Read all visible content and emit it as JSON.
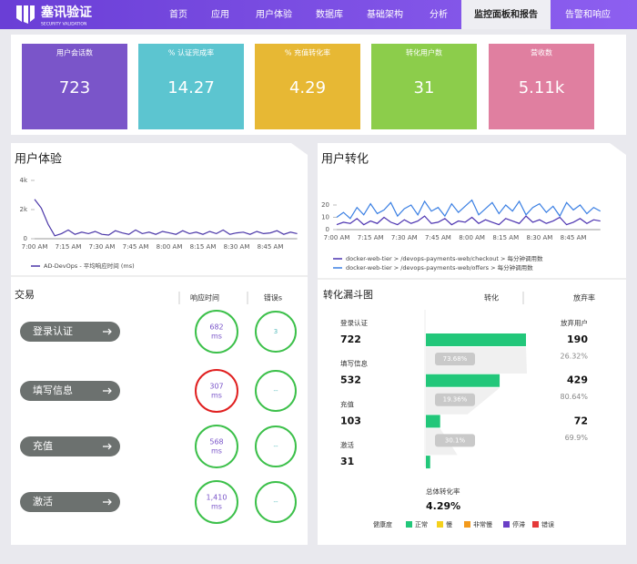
{
  "header": {
    "logo_text": "塞讯验证",
    "logo_sub": "SECURITY VALIDATION",
    "nav": [
      "首页",
      "应用",
      "用户体验",
      "数据库",
      "基础架构",
      "分析",
      "监控面板和报告",
      "告警和响应"
    ],
    "active": 6
  },
  "kpis": [
    {
      "label": "用户会话数",
      "value": "723",
      "color": "#7a55c9"
    },
    {
      "label": "% 认证完成率",
      "value": "14.27",
      "color": "#5cc5d0"
    },
    {
      "label": "% 充值转化率",
      "value": "4.29",
      "color": "#e7b834"
    },
    {
      "label": "转化用户数",
      "value": "31",
      "color": "#8ccd4b"
    },
    {
      "label": "营收数",
      "value": "5.11k",
      "color": "#e07fa0"
    }
  ],
  "ux": {
    "title": "用户体验",
    "chart": {
      "type": "line",
      "categories": [
        "7:00 AM",
        null,
        null,
        null,
        null,
        "7:15 AM",
        null,
        null,
        null,
        null,
        "7:30 AM",
        null,
        null,
        null,
        null,
        "7:45 AM",
        null,
        null,
        null,
        null,
        "8:00 AM",
        null,
        null,
        null,
        null,
        "8:15 AM",
        null,
        null,
        null,
        null,
        "8:30 AM",
        null,
        null,
        null,
        null,
        "8:45 AM",
        null,
        null,
        null,
        null
      ],
      "series": [
        {
          "name": "AD-DevOps - 平均响应时间 (ms)",
          "color": "#4a36a8",
          "values": [
            2700,
            2100,
            1000,
            200,
            350,
            600,
            300,
            450,
            350,
            500,
            300,
            250,
            550,
            400,
            300,
            600,
            350,
            450,
            300,
            500,
            400,
            300,
            550,
            350,
            450,
            300,
            500,
            350,
            600,
            300,
            400,
            450,
            300,
            500,
            350,
            400,
            550,
            300,
            450,
            350
          ]
        }
      ],
      "ylim": [
        0,
        4000
      ],
      "yticks": [
        0,
        {
          "value": 2000,
          "label": "2k"
        },
        {
          "value": 4000,
          "label": "4k"
        }
      ],
      "grid": false
    }
  },
  "conversion": {
    "title": "用户转化",
    "chart": {
      "type": "line",
      "categories": [
        "7:00 AM",
        null,
        null,
        null,
        null,
        "7:15 AM",
        null,
        null,
        null,
        null,
        "7:30 AM",
        null,
        null,
        null,
        null,
        "7:45 AM",
        null,
        null,
        null,
        null,
        "8:00 AM",
        null,
        null,
        null,
        null,
        "8:15 AM",
        null,
        null,
        null,
        null,
        "8:30 AM",
        null,
        null,
        null,
        null,
        "8:45 AM",
        null,
        null,
        null,
        null
      ],
      "series": [
        {
          "name": "docker-web-tier > /devops-payments-web/checkout > 每分钟调用数",
          "color": "#4b32b0",
          "values": [
            4,
            6,
            5,
            9,
            4,
            7,
            5,
            10,
            6,
            4,
            8,
            5,
            7,
            11,
            5,
            6,
            9,
            4,
            7,
            6,
            10,
            5,
            8,
            6,
            4,
            9,
            7,
            5,
            11,
            6,
            8,
            5,
            7,
            10,
            4,
            6,
            9,
            5,
            8,
            7
          ]
        },
        {
          "name": "docker-web-tier > /devops-payments-web/offers > 每分钟调用数",
          "color": "#3a7fe3",
          "values": [
            10,
            14,
            9,
            18,
            12,
            21,
            13,
            16,
            22,
            11,
            17,
            20,
            12,
            23,
            15,
            18,
            11,
            21,
            14,
            19,
            24,
            12,
            17,
            22,
            13,
            20,
            15,
            23,
            12,
            18,
            21,
            14,
            19,
            11,
            22,
            16,
            20,
            13,
            18,
            15
          ]
        }
      ],
      "ylim": [
        0,
        40
      ],
      "yticks": [
        0,
        10,
        20
      ],
      "grid": false
    }
  },
  "transactions": {
    "title": "交易",
    "headers": [
      "响应时间",
      "错误s"
    ],
    "rows": [
      {
        "name": "登录认证",
        "response": "682",
        "unit": "ms",
        "errors": "3",
        "ring_color": "#3cc04a"
      },
      {
        "name": "填写信息",
        "response": "307",
        "unit": "ms",
        "errors": "--",
        "ring_color": "#e02020"
      },
      {
        "name": "充值",
        "response": "568",
        "unit": "ms",
        "errors": "--",
        "ring_color": "#3cc04a"
      },
      {
        "name": "激活",
        "response": "1,410",
        "unit": "ms",
        "errors": "--",
        "ring_color": "#3cc04a"
      }
    ]
  },
  "funnel": {
    "title": "转化漏斗图",
    "headers": [
      "转化",
      "放弃率"
    ],
    "abandon_header": "放弃用户",
    "bar_color": "#22c77a",
    "steps": [
      {
        "name": "登录认证",
        "count": 722,
        "abandoned": 190,
        "abandon_rate": "26.32%",
        "conversion": "73.68%"
      },
      {
        "name": "填写信息",
        "count": 532,
        "abandoned": 429,
        "abandon_rate": "80.64%",
        "conversion": "19.36%"
      },
      {
        "name": "充值",
        "count": 103,
        "abandoned": 72,
        "abandon_rate": "69.9%",
        "conversion": "30.1%"
      },
      {
        "name": "激活",
        "count": 31
      }
    ],
    "total_label": "总体转化率",
    "total_value": "4.29%",
    "legend_title": "健康度",
    "legend": [
      {
        "name": "正常",
        "color": "#22c77a"
      },
      {
        "name": "慢",
        "color": "#f5d11c"
      },
      {
        "name": "非常慢",
        "color": "#f39a1c"
      },
      {
        "name": "停滞",
        "color": "#6a3fc6"
      },
      {
        "name": "错误",
        "color": "#e53a3a"
      }
    ]
  }
}
